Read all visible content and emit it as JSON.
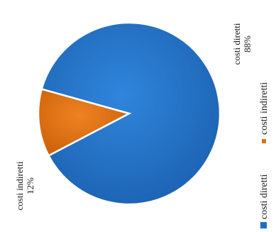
{
  "chart_data": {
    "type": "pie",
    "title": "",
    "slices": [
      {
        "label": "costi diretti",
        "value": 88,
        "pct_label": "88%",
        "color": "#1f6fc4"
      },
      {
        "label": "costi indiretti",
        "value": 12,
        "pct_label": "12%",
        "color": "#e0700f"
      }
    ],
    "legend": {
      "position": "left",
      "items": [
        "costi diretti",
        "costi indiretti"
      ]
    },
    "orientation": "rotated-90-ccw"
  }
}
